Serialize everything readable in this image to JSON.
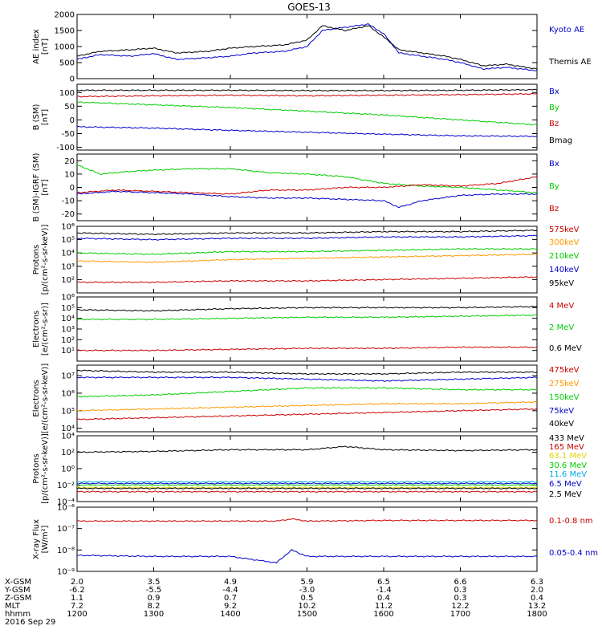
{
  "chart_data": {
    "type": "line",
    "title": "GOES-13",
    "colors": {
      "blue": "#0000cc",
      "black": "#000000",
      "green": "#00cc00",
      "red": "#cc0000",
      "orange": "#ff9900",
      "yellow": "#e8d000",
      "cyan": "#00aaee"
    },
    "panels": [
      {
        "id": "ae",
        "ylabel": [
          "AE index",
          "[nT]"
        ],
        "scale": "linear",
        "ylim": [
          0,
          2000
        ],
        "yticks": [
          0,
          500,
          1000,
          1500,
          2000
        ],
        "ytick_labels": [
          "0",
          "500",
          "1000",
          "1500",
          "2000"
        ],
        "series": [
          {
            "name": "Kyoto AE",
            "color": "#0000cc",
            "x": [
              12.0,
              12.3,
              12.7,
              13.0,
              13.3,
              13.7,
              14.0,
              14.3,
              14.7,
              15.0,
              15.2,
              15.5,
              15.8,
              16.0,
              16.2,
              16.5,
              16.8,
              17.0,
              17.3,
              17.6,
              18.0
            ],
            "y": [
              600,
              750,
              700,
              780,
              600,
              650,
              700,
              800,
              850,
              1000,
              1500,
              1600,
              1700,
              1400,
              800,
              700,
              600,
              500,
              300,
              350,
              250
            ]
          },
          {
            "name": "Themis AE",
            "color": "#000000",
            "x": [
              12.0,
              12.3,
              12.7,
              13.0,
              13.3,
              13.7,
              14.0,
              14.3,
              14.7,
              15.0,
              15.2,
              15.5,
              15.8,
              16.0,
              16.2,
              16.5,
              16.8,
              17.0,
              17.3,
              17.6,
              18.0
            ],
            "y": [
              700,
              850,
              900,
              950,
              800,
              850,
              950,
              1000,
              1050,
              1200,
              1650,
              1500,
              1650,
              1300,
              900,
              800,
              700,
              600,
              400,
              450,
              300
            ]
          }
        ]
      },
      {
        "id": "bsm",
        "ylabel": [
          "B (SM)",
          "[nT]"
        ],
        "scale": "linear",
        "ylim": [
          -110,
          130
        ],
        "yticks": [
          -100,
          -50,
          0,
          50,
          100
        ],
        "ytick_labels": [
          "-100",
          "-50",
          "0",
          "50",
          "100"
        ],
        "series": [
          {
            "name": "Bx",
            "color": "#0000cc",
            "x": [
              12,
              13,
              14,
              15,
              16,
              17,
              18
            ],
            "y": [
              -25,
              -30,
              -38,
              -45,
              -52,
              -58,
              -60
            ]
          },
          {
            "name": "By",
            "color": "#00cc00",
            "x": [
              12,
              13,
              14,
              15,
              16,
              17,
              18
            ],
            "y": [
              65,
              55,
              45,
              32,
              18,
              0,
              -18
            ]
          },
          {
            "name": "Bz",
            "color": "#cc0000",
            "x": [
              12,
              13,
              14,
              15,
              16,
              17,
              18
            ],
            "y": [
              85,
              88,
              90,
              88,
              90,
              92,
              95
            ]
          },
          {
            "name": "Bmag",
            "color": "#000000",
            "x": [
              12,
              13,
              14,
              15,
              16,
              17,
              18
            ],
            "y": [
              108,
              108,
              108,
              107,
              107,
              108,
              110
            ]
          }
        ]
      },
      {
        "id": "bigrf",
        "ylabel": [
          "B (SM)-IGRF (SM)",
          "[nT]"
        ],
        "scale": "linear",
        "ylim": [
          -25,
          25
        ],
        "yticks": [
          -20,
          -10,
          0,
          10,
          20
        ],
        "ytick_labels": [
          "-20",
          "-10",
          "0",
          "10",
          "20"
        ],
        "series": [
          {
            "name": "Bx",
            "color": "#0000cc",
            "x": [
              12.0,
              12.5,
              13.0,
              13.5,
              14.0,
              14.5,
              15.0,
              15.5,
              16.0,
              16.2,
              16.5,
              17.0,
              17.5,
              18.0
            ],
            "y": [
              -5,
              -3,
              -4,
              -5,
              -7,
              -8,
              -8,
              -9,
              -10,
              -15,
              -10,
              -6,
              -5,
              -5
            ]
          },
          {
            "name": "By",
            "color": "#00cc00",
            "x": [
              12.0,
              12.3,
              12.7,
              13.0,
              13.5,
              14.0,
              14.5,
              15.0,
              15.5,
              16.0,
              16.5,
              17.0,
              17.5,
              18.0
            ],
            "y": [
              17,
              10,
              12,
              13,
              14,
              14,
              11,
              10,
              8,
              3,
              1,
              0,
              -2,
              -4
            ]
          },
          {
            "name": "Bz",
            "color": "#cc0000",
            "x": [
              12.0,
              12.5,
              13.0,
              13.5,
              14.0,
              14.5,
              15.0,
              15.5,
              16.0,
              16.5,
              17.0,
              17.5,
              18.0
            ],
            "y": [
              -4,
              -2,
              -3,
              -4,
              -5,
              -2,
              -2,
              0,
              0,
              2,
              1,
              3,
              8
            ]
          }
        ]
      },
      {
        "id": "protons",
        "ylabel": [
          "Protons",
          "[p/(cm²-s-sr-keV)]"
        ],
        "scale": "log",
        "ylim": [
          1,
          6
        ],
        "yticks": [
          2,
          3,
          4,
          5,
          6
        ],
        "ytick_labels": [
          "10²",
          "10³",
          "10⁴",
          "10⁵",
          "10⁶"
        ],
        "series": [
          {
            "name": "575keV",
            "color": "#cc0000",
            "x": [
              12,
              13,
              14,
              15,
              16,
              17,
              18
            ],
            "y": [
              1.8,
              1.8,
              1.9,
              1.9,
              2.0,
              2.1,
              2.2
            ]
          },
          {
            "name": "300keV",
            "color": "#ff9900",
            "x": [
              12,
              13,
              14,
              15,
              16,
              17,
              18
            ],
            "y": [
              3.4,
              3.3,
              3.5,
              3.6,
              3.7,
              3.8,
              3.9
            ]
          },
          {
            "name": "210keV",
            "color": "#00cc00",
            "x": [
              12,
              13,
              14,
              15,
              16,
              17,
              18
            ],
            "y": [
              4.0,
              3.9,
              4.1,
              4.1,
              4.2,
              4.3,
              4.3
            ]
          },
          {
            "name": "140keV",
            "color": "#0000cc",
            "x": [
              12,
              13,
              14,
              15,
              16,
              17,
              18
            ],
            "y": [
              5.1,
              5.0,
              5.1,
              5.1,
              5.2,
              5.2,
              5.3
            ]
          },
          {
            "name": "95keV",
            "color": "#000000",
            "x": [
              12,
              13,
              14,
              15,
              16,
              17,
              18
            ],
            "y": [
              5.5,
              5.4,
              5.5,
              5.5,
              5.6,
              5.6,
              5.7
            ]
          }
        ]
      },
      {
        "id": "electrons_mev",
        "ylabel": [
          "Electrons",
          "[e/(cm²-s-sr)]"
        ],
        "scale": "log",
        "ylim": [
          0,
          6
        ],
        "yticks": [
          1,
          2,
          3,
          4,
          5,
          6
        ],
        "ytick_labels": [
          "10¹",
          "10²",
          "10³",
          "10⁴",
          "10⁵",
          "10⁶"
        ],
        "series": [
          {
            "name": "4 MeV",
            "color": "#cc0000",
            "x": [
              12,
              13,
              14,
              15,
              16,
              17,
              18
            ],
            "y": [
              1.0,
              1.0,
              1.1,
              1.2,
              1.2,
              1.3,
              1.3
            ]
          },
          {
            "name": "2 MeV",
            "color": "#00cc00",
            "x": [
              12,
              13,
              14,
              15,
              16,
              17,
              18
            ],
            "y": [
              3.9,
              3.9,
              4.0,
              4.1,
              4.1,
              4.2,
              4.3
            ]
          },
          {
            "name": "0.6 MeV",
            "color": "#000000",
            "x": [
              12,
              13,
              14,
              15,
              16,
              17,
              18
            ],
            "y": [
              4.8,
              4.7,
              4.9,
              5.0,
              5.0,
              5.0,
              5.1
            ]
          }
        ]
      },
      {
        "id": "electrons_kev",
        "ylabel": [
          "Electrons",
          "[e/(cm²-s-sr-keV)]"
        ],
        "scale": "log",
        "ylim": [
          3.8,
          7.6
        ],
        "yticks": [
          4,
          5,
          6,
          7
        ],
        "ytick_labels": [
          "10⁴",
          "10⁵",
          "10⁶",
          "10⁷"
        ],
        "series": [
          {
            "name": "475keV",
            "color": "#cc0000",
            "x": [
              12,
              13,
              14,
              15,
              16,
              17,
              18
            ],
            "y": [
              4.5,
              4.6,
              4.7,
              4.8,
              4.9,
              5.0,
              5.1
            ]
          },
          {
            "name": "275keV",
            "color": "#ff9900",
            "x": [
              12,
              13,
              14,
              15,
              16,
              17,
              18
            ],
            "y": [
              5.0,
              5.1,
              5.2,
              5.3,
              5.4,
              5.4,
              5.5
            ]
          },
          {
            "name": "150keV",
            "color": "#00cc00",
            "x": [
              12,
              13,
              14,
              15,
              16,
              17,
              18
            ],
            "y": [
              5.8,
              5.9,
              6.1,
              6.3,
              6.3,
              6.2,
              6.2
            ]
          },
          {
            "name": "75keV",
            "color": "#0000cc",
            "x": [
              12,
              13,
              14,
              15,
              16,
              17,
              18
            ],
            "y": [
              6.9,
              6.9,
              6.9,
              6.8,
              6.7,
              6.8,
              6.9
            ]
          },
          {
            "name": "40keV",
            "color": "#000000",
            "x": [
              12,
              13,
              14,
              15,
              16,
              17,
              18
            ],
            "y": [
              7.3,
              7.2,
              7.2,
              7.1,
              7.1,
              7.2,
              7.2
            ]
          }
        ]
      },
      {
        "id": "protons_mev",
        "ylabel": [
          "Protons",
          "[p/(cm²-s-sr-keV)]"
        ],
        "scale": "log",
        "ylim": [
          -4,
          4
        ],
        "yticks": [
          -4,
          -2,
          0,
          2,
          4
        ],
        "ytick_labels": [
          "10⁻⁴",
          "10⁻²",
          "10⁰",
          "10²",
          "10⁴"
        ],
        "series": [
          {
            "name": "433 MeV",
            "color": "#000000",
            "x": [
              12,
              13,
              14,
              15,
              15.5,
              16,
              17,
              18
            ],
            "y": [
              2.0,
              2.1,
              2.3,
              2.3,
              2.7,
              2.3,
              2.2,
              2.3
            ]
          },
          {
            "name": "165 MeV",
            "color": "#cc0000",
            "x": [
              12,
              18
            ],
            "y": [
              -2.8,
              -2.8
            ]
          },
          {
            "name": "63.1 MeV",
            "color": "#e8d000",
            "x": [
              12,
              18
            ],
            "y": [
              -2.3,
              -2.3
            ]
          },
          {
            "name": "30.6 MeV",
            "color": "#00cc00",
            "x": [
              12,
              18
            ],
            "y": [
              -2.0,
              -2.0
            ]
          },
          {
            "name": "11.6 MeV",
            "color": "#00aaee",
            "x": [
              12,
              18
            ],
            "y": [
              -1.6,
              -1.6
            ]
          },
          {
            "name": "6.5 MeV",
            "color": "#0000cc",
            "x": [
              12,
              18
            ],
            "y": [
              -1.8,
              -1.8
            ]
          },
          {
            "name": "2.5 MeV",
            "color": "#000000",
            "x": [
              12,
              18
            ],
            "y": [
              -2.4,
              -2.4
            ]
          }
        ]
      },
      {
        "id": "xray",
        "ylabel": [
          "X-ray Flux",
          "[W/m²]"
        ],
        "scale": "log",
        "ylim": [
          -9,
          -6
        ],
        "yticks": [
          -9,
          -8,
          -7,
          -6
        ],
        "ytick_labels": [
          "10⁻⁹",
          "10⁻⁸",
          "10⁻⁷",
          "10⁻⁶"
        ],
        "series": [
          {
            "name": "0.1-0.8 nm",
            "color": "#cc0000",
            "x": [
              12,
              13,
              14,
              14.6,
              14.8,
              15,
              16,
              17,
              18
            ],
            "y": [
              -6.65,
              -6.65,
              -6.65,
              -6.65,
              -6.55,
              -6.65,
              -6.62,
              -6.62,
              -6.62
            ]
          },
          {
            "name": "0.05-0.4 nm",
            "color": "#0000cc",
            "x": [
              12,
              13,
              14,
              14.6,
              14.8,
              15,
              16,
              17,
              18
            ],
            "y": [
              -8.25,
              -8.3,
              -8.3,
              -8.6,
              -8.0,
              -8.3,
              -8.3,
              -8.3,
              -8.3
            ]
          }
        ]
      }
    ],
    "x_axis": {
      "range": [
        12,
        18
      ],
      "ticks": [
        12,
        13,
        14,
        15,
        16,
        17,
        18
      ],
      "rows": [
        {
          "label": "X-GSM",
          "values": [
            "2.0",
            "3.5",
            "4.9",
            "5.9",
            "6.5",
            "6.6",
            "6.3"
          ]
        },
        {
          "label": "Y-GSM",
          "values": [
            "-6.2",
            "-5.5",
            "-4.4",
            "-3.0",
            "-1.4",
            "0.3",
            "2.0"
          ]
        },
        {
          "label": "Z-GSM",
          "values": [
            "1.1",
            "0.9",
            "0.7",
            "0.5",
            "0.4",
            "0.3",
            "0.4"
          ]
        },
        {
          "label": "MLT",
          "values": [
            "7.2",
            "8.2",
            "9.2",
            "10.2",
            "11.2",
            "12.2",
            "13.2"
          ]
        },
        {
          "label": "hhmm",
          "values": [
            "1200",
            "1300",
            "1400",
            "1500",
            "1600",
            "1700",
            "1800"
          ]
        }
      ],
      "date": "2016 Sep 29"
    }
  }
}
